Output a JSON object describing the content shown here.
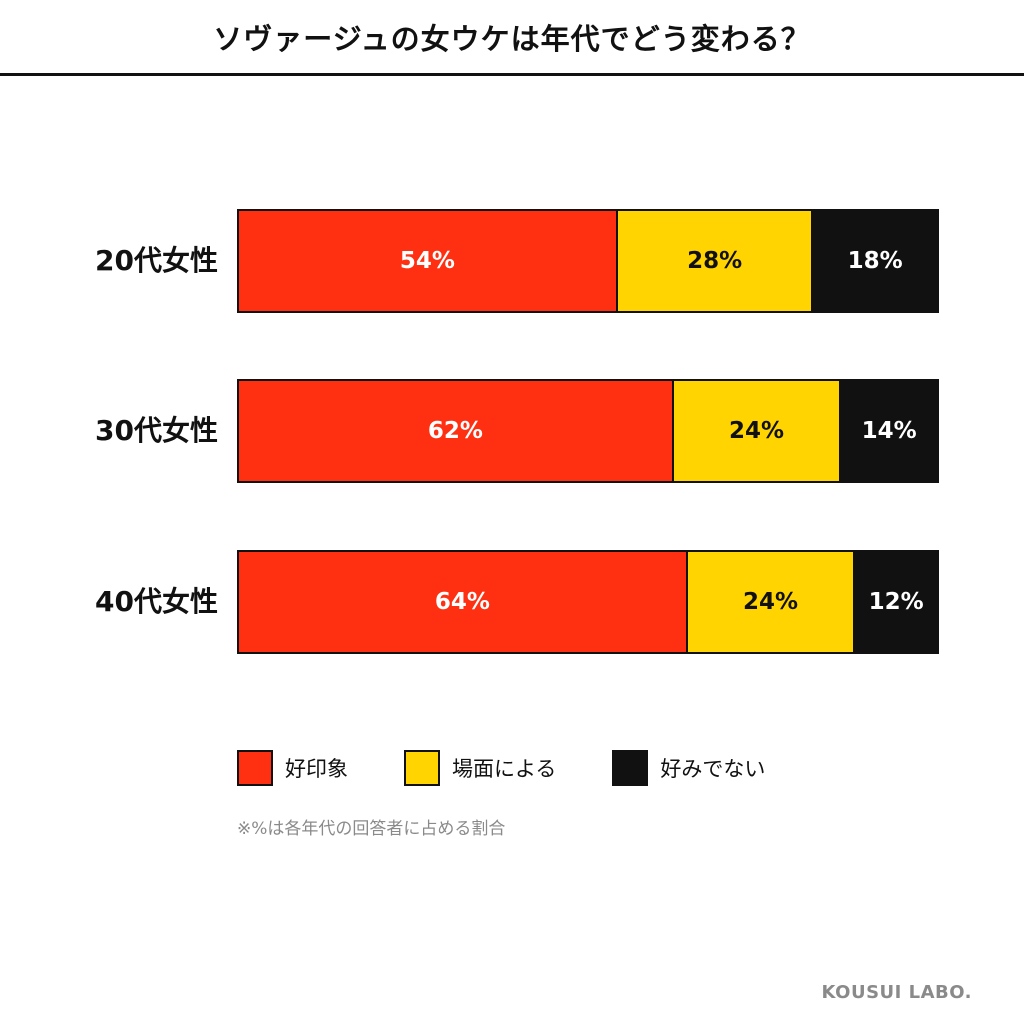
{
  "header": {
    "title": "ソヴァージュの女ウケは年代でどう変わる？"
  },
  "chart_data": {
    "type": "bar",
    "orientation": "horizontal-stacked-100",
    "title": "ソヴァージュの女ウケは年代でどう変わる？",
    "categories": [
      "20代女性",
      "30代女性",
      "40代女性"
    ],
    "series": [
      {
        "name": "好印象",
        "color": "#FF3011",
        "text_color": "#ffffff",
        "values": [
          54,
          62,
          64
        ]
      },
      {
        "name": "場面による",
        "color": "#FFD400",
        "text_color": "#111111",
        "values": [
          28,
          24,
          24
        ]
      },
      {
        "name": "好みでない",
        "color": "#111111",
        "text_color": "#ffffff",
        "values": [
          18,
          14,
          12
        ]
      }
    ],
    "value_suffix": "%",
    "legend_position": "bottom",
    "note": "※%は各年代の回答者に占める割合"
  },
  "footer": {
    "brand": "KOUSUI LABO."
  }
}
